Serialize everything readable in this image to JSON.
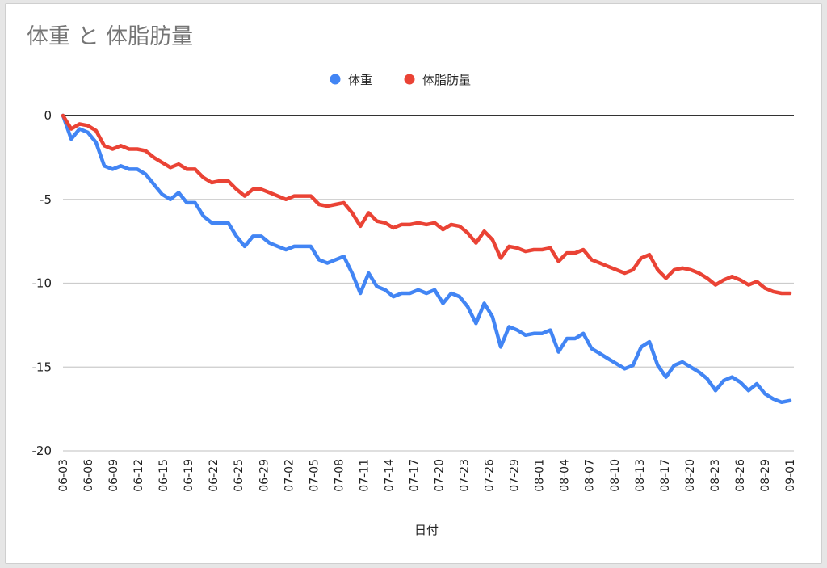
{
  "chart_data": {
    "type": "line",
    "title": "体重 と 体脂肪量",
    "xlabel": "日付",
    "ylabel": "",
    "ylim": [
      -20,
      0
    ],
    "yticks": [
      0,
      -5,
      -10,
      -15,
      -20
    ],
    "legend_position": "top",
    "grid": true,
    "x_tick_labels": [
      "06-03",
      "06-06",
      "06-09",
      "06-12",
      "06-15",
      "06-19",
      "06-22",
      "06-25",
      "06-29",
      "07-02",
      "07-05",
      "07-08",
      "07-11",
      "07-14",
      "07-17",
      "07-20",
      "07-23",
      "07-26",
      "07-29",
      "08-01",
      "08-04",
      "08-07",
      "08-10",
      "08-13",
      "08-17",
      "08-20",
      "08-23",
      "08-26",
      "08-29",
      "09-01"
    ],
    "series": [
      {
        "name": "体重",
        "color": "#4285f4",
        "values": [
          0,
          -1.4,
          -0.8,
          -1.0,
          -1.6,
          -3.0,
          -3.2,
          -3.0,
          -3.2,
          -3.2,
          -3.5,
          -4.1,
          -4.7,
          -5.0,
          -4.6,
          -5.2,
          -5.2,
          -6.0,
          -6.4,
          -6.4,
          -6.4,
          -7.2,
          -7.8,
          -7.2,
          -7.2,
          -7.6,
          -7.8,
          -8.0,
          -7.8,
          -7.8,
          -7.8,
          -8.6,
          -8.8,
          -8.6,
          -8.4,
          -9.4,
          -10.6,
          -9.4,
          -10.2,
          -10.4,
          -10.8,
          -10.6,
          -10.6,
          -10.4,
          -10.6,
          -10.4,
          -11.2,
          -10.6,
          -10.8,
          -11.4,
          -12.4,
          -11.2,
          -12.0,
          -13.8,
          -12.6,
          -12.8,
          -13.1,
          -13.0,
          -13.0,
          -12.8,
          -14.1,
          -13.3,
          -13.3,
          -13.0,
          -13.9,
          -14.2,
          -14.5,
          -14.8,
          -15.1,
          -14.9,
          -13.8,
          -13.5,
          -14.9,
          -15.6,
          -14.9,
          -14.7,
          -15.0,
          -15.3,
          -15.7,
          -16.4,
          -15.8,
          -15.6,
          -15.9,
          -16.4,
          -16.0,
          -16.6,
          -16.9,
          -17.1,
          -17.0
        ],
        "last_value": -17.0
      },
      {
        "name": "体脂肪量",
        "color": "#ea4335",
        "values": [
          0,
          -0.8,
          -0.5,
          -0.6,
          -0.9,
          -1.8,
          -2.0,
          -1.8,
          -2.0,
          -2.0,
          -2.1,
          -2.5,
          -2.8,
          -3.1,
          -2.9,
          -3.2,
          -3.2,
          -3.7,
          -4.0,
          -3.9,
          -3.9,
          -4.4,
          -4.8,
          -4.4,
          -4.4,
          -4.6,
          -4.8,
          -5.0,
          -4.8,
          -4.8,
          -4.8,
          -5.3,
          -5.4,
          -5.3,
          -5.2,
          -5.8,
          -6.6,
          -5.8,
          -6.3,
          -6.4,
          -6.7,
          -6.5,
          -6.5,
          -6.4,
          -6.5,
          -6.4,
          -6.8,
          -6.5,
          -6.6,
          -7.0,
          -7.6,
          -6.9,
          -7.4,
          -8.5,
          -7.8,
          -7.9,
          -8.1,
          -8.0,
          -8.0,
          -7.9,
          -8.7,
          -8.2,
          -8.2,
          -8.0,
          -8.6,
          -8.8,
          -9.0,
          -9.2,
          -9.4,
          -9.2,
          -8.5,
          -8.3,
          -9.2,
          -9.7,
          -9.2,
          -9.1,
          -9.2,
          -9.4,
          -9.7,
          -10.1,
          -9.8,
          -9.6,
          -9.8,
          -10.1,
          -9.9,
          -10.3,
          -10.5,
          -10.6,
          -10.6
        ]
      }
    ]
  }
}
